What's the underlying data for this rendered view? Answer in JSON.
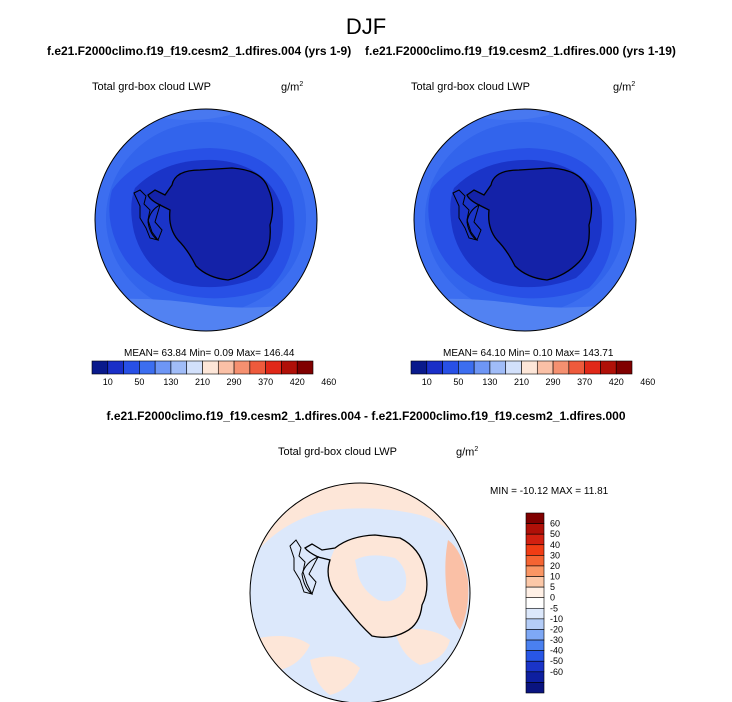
{
  "figure": {
    "title": "DJF",
    "case_a_label": "f.e21.F2000climo.f19_f19.cesm2_1.dfires.004 (yrs 1-9)",
    "case_b_label": "f.e21.F2000climo.f19_f19.cesm2_1.dfires.000 (yrs 1-19)",
    "diff_label": "f.e21.F2000climo.f19_f19.cesm2_1.dfires.004 - f.e21.F2000climo.f19_f19.cesm2_1.dfires.000"
  },
  "panels": [
    {
      "id": "case-a",
      "variable": "Total grd-box cloud LWP",
      "unit": "g/m",
      "unit_exp": "2",
      "stats": "MEAN= 63.84  Min=   0.09  Max= 146.44"
    },
    {
      "id": "case-b",
      "variable": "Total grd-box cloud LWP",
      "unit": "g/m",
      "unit_exp": "2",
      "stats": "MEAN= 64.10  Min=   0.10  Max= 143.71"
    },
    {
      "id": "diff",
      "variable": "Total grd-box cloud LWP",
      "unit": "g/m",
      "unit_exp": "2",
      "stats": "MIN = -10.12 MAX =  11.81"
    }
  ],
  "colorbar_main": {
    "colors": [
      "#0a1a8c",
      "#1a2fc8",
      "#2850e6",
      "#3c6ef0",
      "#6e96f5",
      "#a0bcf8",
      "#d2e0fb",
      "#fde6d8",
      "#fac0a6",
      "#f59070",
      "#ee5a3c",
      "#e02818",
      "#b01008",
      "#800000"
    ],
    "labels": [
      "10",
      "50",
      "130",
      "210",
      "290",
      "370",
      "420",
      "460"
    ]
  },
  "colorbar_diff": {
    "colors": [
      "#800000",
      "#b01008",
      "#d22010",
      "#f03c14",
      "#f56432",
      "#fa9664",
      "#fcc8a8",
      "#fff0e6",
      "#ffffff",
      "#dce8fb",
      "#b4cdf8",
      "#7ea8f5",
      "#4a80f0",
      "#2856e6",
      "#1a34c8",
      "#0e1fa0",
      "#0a1480"
    ],
    "labels": [
      "60",
      "50",
      "40",
      "30",
      "20",
      "10",
      "5",
      "0",
      "-5",
      "-10",
      "-20",
      "-30",
      "-40",
      "-50",
      "-60"
    ]
  },
  "map_colors": {
    "interior": "#1422a8",
    "inner": "#1a34c8",
    "ocean_mid": "#2850e6",
    "ocean_outer": "#3c6ef0",
    "ocean_light": "#5282f2",
    "diff_neg": "#dce8fb",
    "diff_pos": "#fde6d8",
    "diff_pos2": "#fac0a6"
  }
}
